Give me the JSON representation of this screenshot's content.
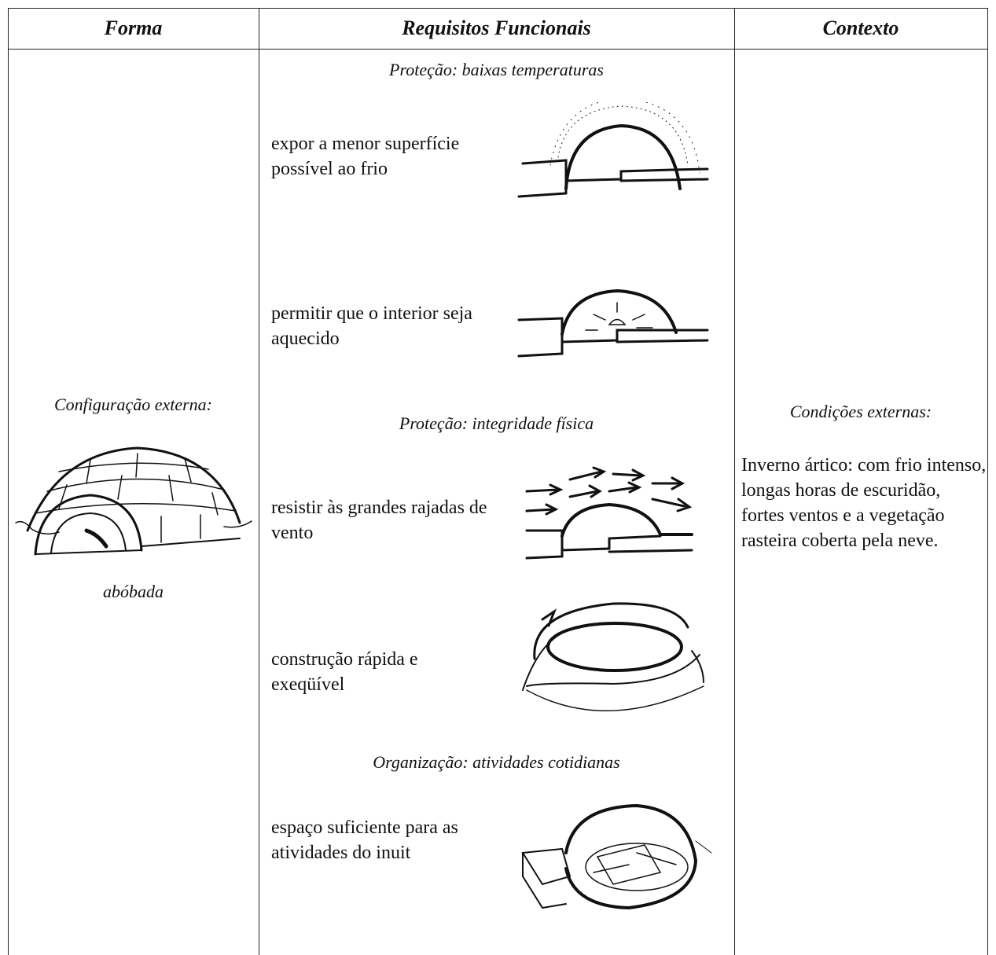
{
  "table": {
    "headers": [
      "Forma",
      "Requisitos Funcionais",
      "Contexto"
    ],
    "forma": {
      "label": "Configuração externa:",
      "caption": "abóbada"
    },
    "requisitos": [
      {
        "heading": "Proteção: baixas temperaturas",
        "items": [
          "expor a menor superfície possível ao frio",
          "permitir que o interior seja aquecido"
        ]
      },
      {
        "heading": "Proteção: integridade física",
        "items": [
          "resistir às grandes rajadas de vento",
          "construção rápida e exeqüível"
        ]
      },
      {
        "heading": "Organização: atividades cotidianas",
        "items": [
          "espaço suficiente para as atividades do inuit"
        ]
      }
    ],
    "contexto": {
      "label": "Condições externas:",
      "text": "Inverno ártico: com frio intenso, longas horas de escuridão, fortes ventos e a vegetação rasteira coberta pela neve."
    }
  }
}
